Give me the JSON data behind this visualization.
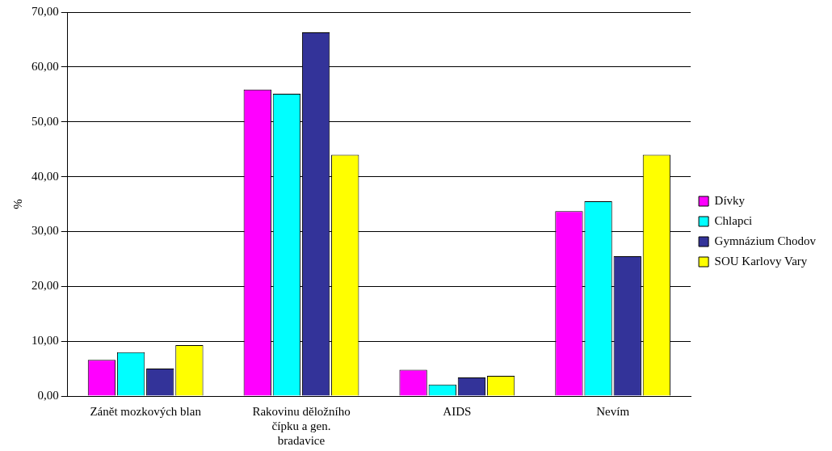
{
  "chart_data": {
    "type": "bar",
    "ylabel": "%",
    "categories": [
      "Zánět mozkových blan",
      "Rakovinu děložního čípku a gen. bradavice",
      "AIDS",
      "Nevím"
    ],
    "series": [
      {
        "name": "Dívky",
        "color": "#ff00ff",
        "values": [
          6.6,
          55.9,
          4.8,
          33.7
        ]
      },
      {
        "name": "Chlapci",
        "color": "#00ffff",
        "values": [
          8.0,
          55.1,
          2.1,
          35.5
        ]
      },
      {
        "name": "Gymnázium Chodov",
        "color": "#333399",
        "values": [
          5.0,
          66.3,
          3.4,
          25.5
        ]
      },
      {
        "name": "SOU Karlovy Vary",
        "color": "#ffff00",
        "values": [
          9.3,
          44.0,
          3.7,
          44.0
        ]
      }
    ],
    "ylim": [
      0,
      70
    ],
    "yticks": [
      {
        "value": 0,
        "label": "0,00"
      },
      {
        "value": 10,
        "label": "10,00"
      },
      {
        "value": 20,
        "label": "20,00"
      },
      {
        "value": 30,
        "label": "30,00"
      },
      {
        "value": 40,
        "label": "40,00"
      },
      {
        "value": 50,
        "label": "50,00"
      },
      {
        "value": 60,
        "label": "60,00"
      },
      {
        "value": 70,
        "label": "70,00"
      }
    ],
    "grid": "y",
    "legend": "right"
  }
}
